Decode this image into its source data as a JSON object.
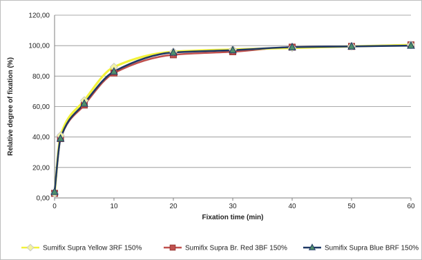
{
  "chart_data": {
    "type": "line",
    "title": "",
    "xlabel": "Fixation time (min)",
    "ylabel": "Relative degree of fixation (%)",
    "xlim": [
      0,
      60
    ],
    "ylim": [
      0,
      120
    ],
    "x_ticks": [
      "0",
      "10",
      "20",
      "30",
      "40",
      "50",
      "60"
    ],
    "y_ticks": [
      "0,00",
      "20,00",
      "40,00",
      "60,00",
      "80,00",
      "100,00",
      "120,00"
    ],
    "grid": "horizontal",
    "legend_position": "bottom",
    "series": [
      {
        "name": "Sumifix Supra Yellow 3RF 150%",
        "color": "#f2f23a",
        "marker": "diamond",
        "x": [
          0,
          1,
          5,
          10,
          20,
          30,
          40,
          50,
          60
        ],
        "values": [
          3,
          41,
          64,
          86,
          96,
          97.5,
          98.5,
          99.5,
          100.5
        ]
      },
      {
        "name": "Sumifix Supra Br. Red 3BF 150%",
        "color": "#c0504d",
        "marker": "square",
        "x": [
          0,
          1,
          5,
          10,
          20,
          30,
          40,
          50,
          60
        ],
        "values": [
          3,
          39,
          61,
          82,
          94,
          96,
          99,
          99.5,
          100.5
        ]
      },
      {
        "name": "Sumifix Supra Blue BRF 150%",
        "color": "#1f3864",
        "marker": "triangle",
        "x": [
          0,
          1,
          5,
          10,
          20,
          30,
          40,
          50,
          60
        ],
        "values": [
          4,
          39,
          62,
          83,
          95.5,
          97,
          99,
          99.5,
          100
        ]
      }
    ]
  }
}
